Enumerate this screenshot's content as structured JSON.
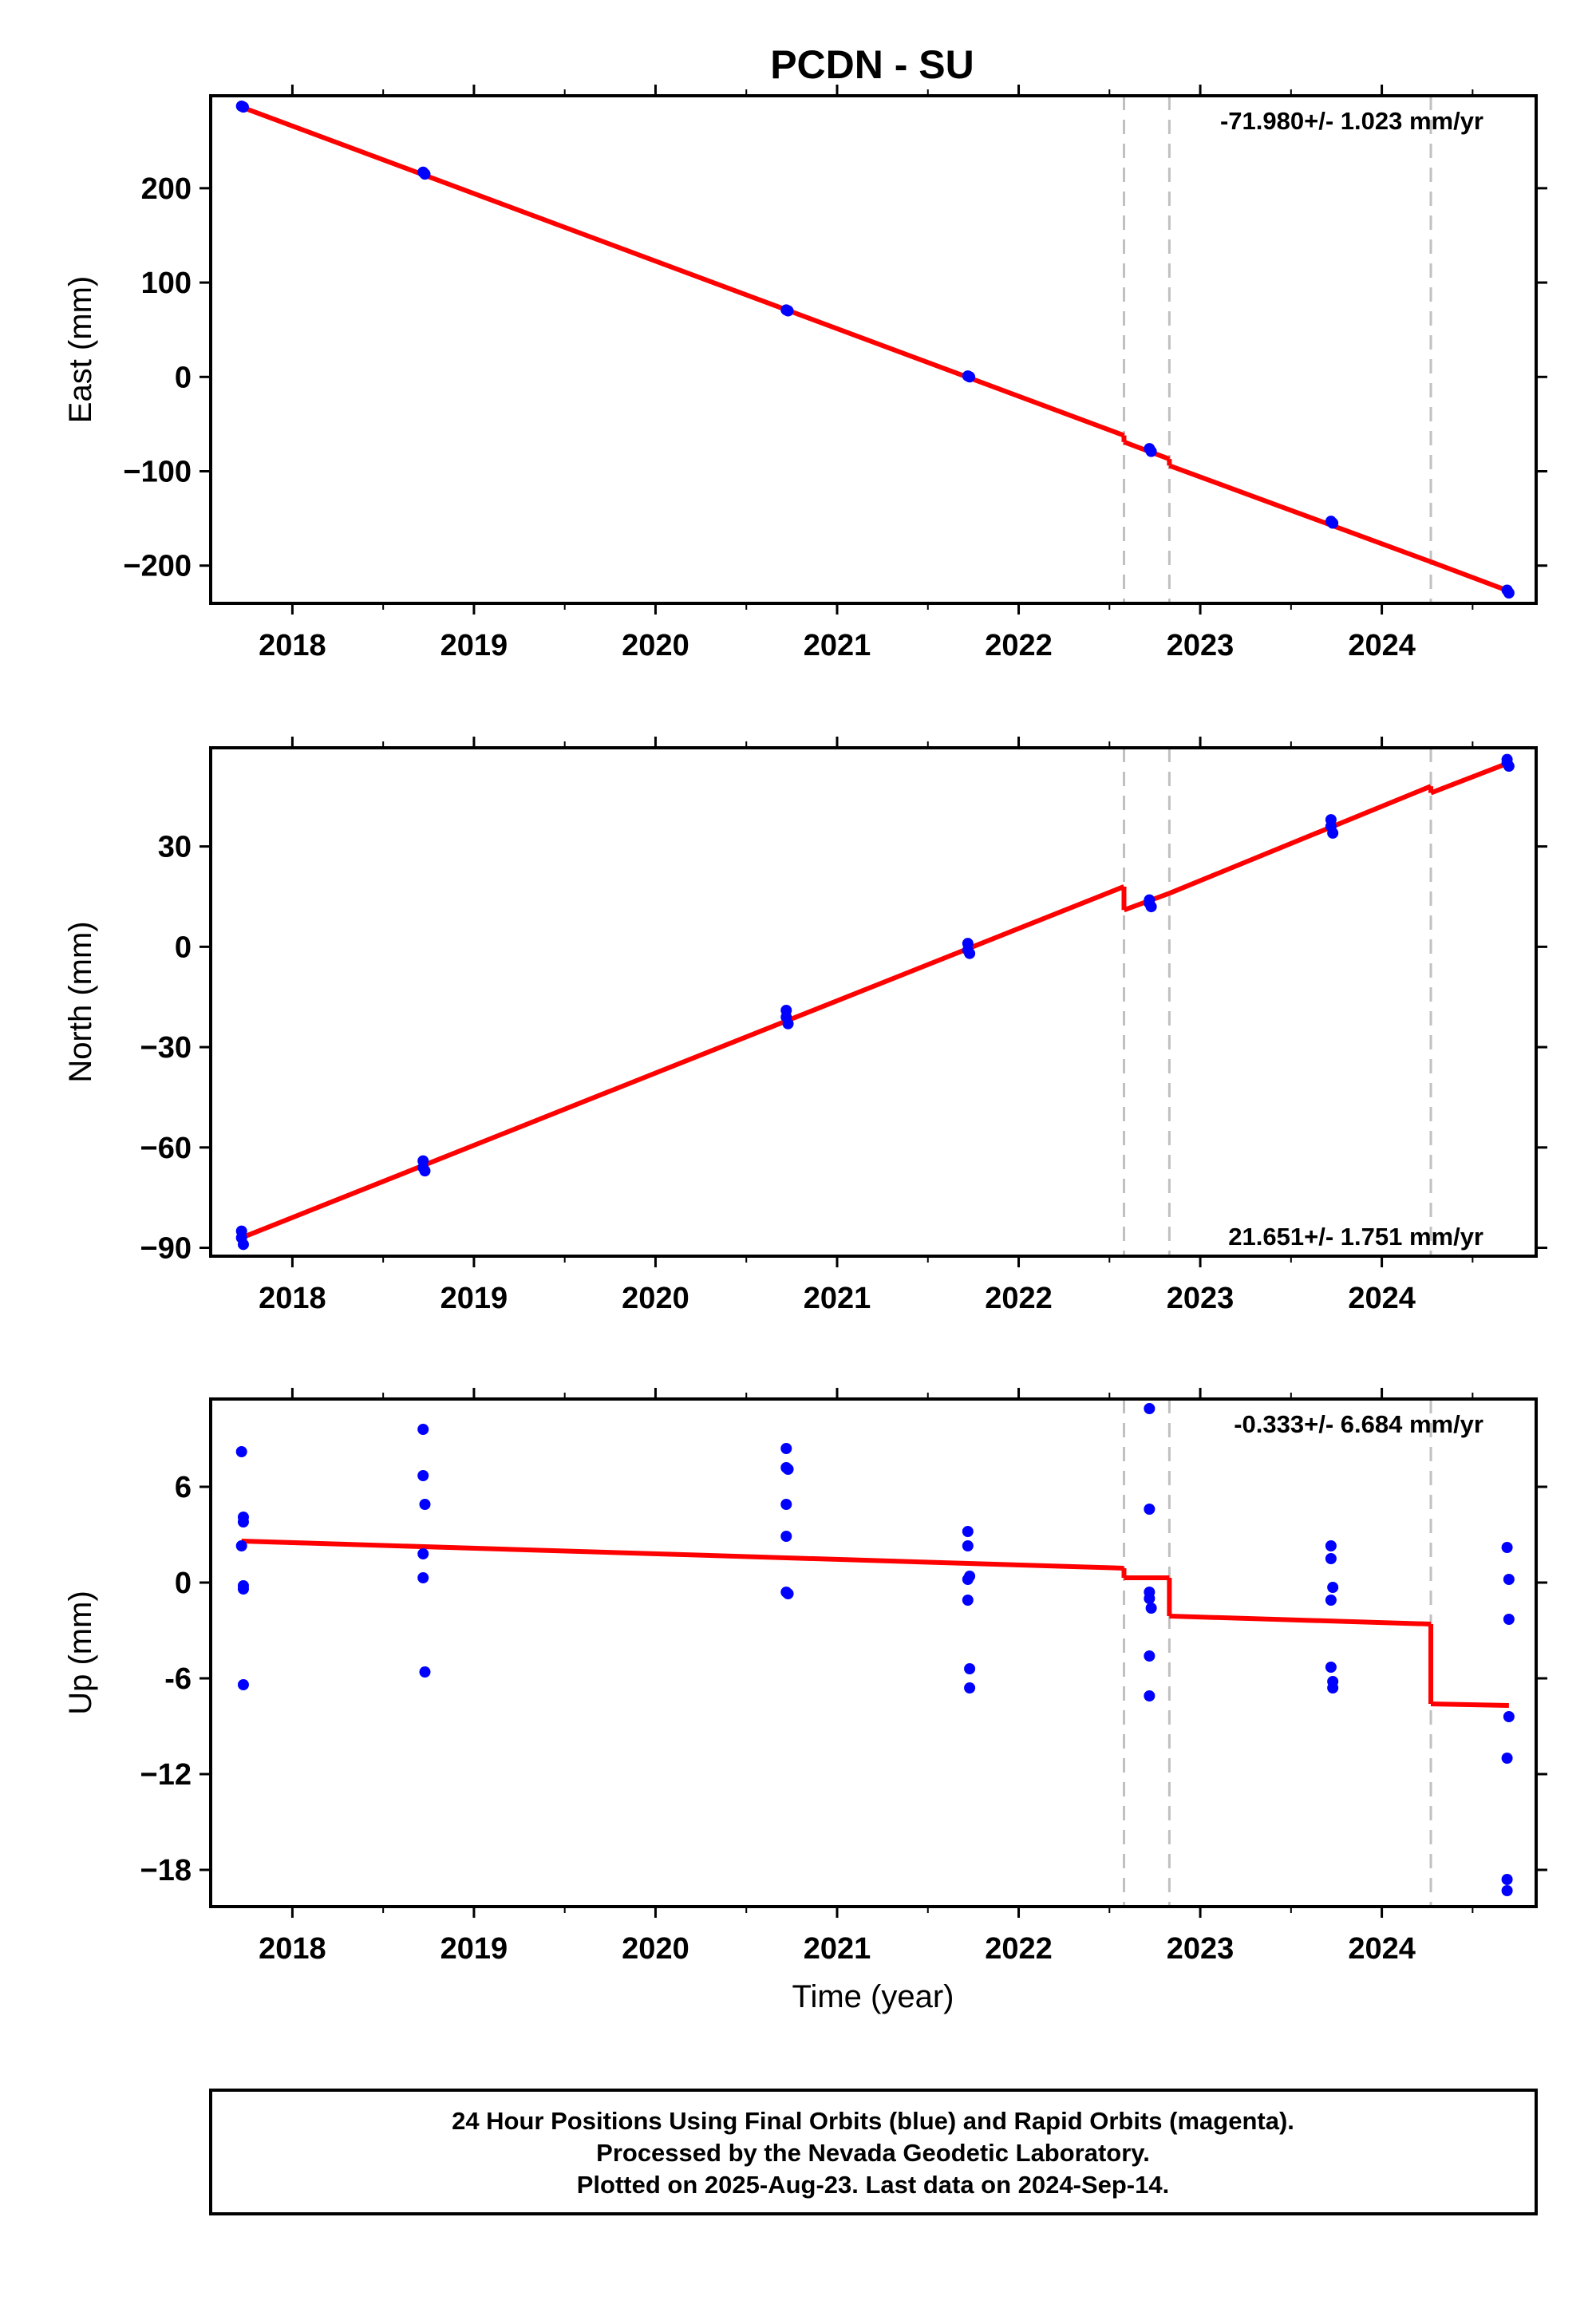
{
  "title": "PCDN - SU",
  "xlabel": "Time (year)",
  "x_ticks": [
    2018,
    2019,
    2020,
    2021,
    2022,
    2023,
    2024
  ],
  "xlim": [
    2017.55,
    2024.85
  ],
  "steps": [
    2022.58,
    2022.83,
    2024.27
  ],
  "colors": {
    "data": "#0000ff",
    "model": "#ff0000",
    "steps": "#c0c0c0",
    "frame": "#000000"
  },
  "caption": {
    "lines": [
      "24 Hour Positions Using Final Orbits (blue) and Rapid Orbits (magenta).",
      "Processed by the Nevada Geodetic Laboratory.",
      "Plotted on 2025-Aug-23. Last data on 2024-Sep-14."
    ]
  },
  "chart_data": [
    {
      "type": "scatter",
      "name": "east",
      "ylabel": "East (mm)",
      "rate_label": "-71.980+/- 1.023 mm/yr",
      "rate_position": "top-right",
      "ylim": [
        -240,
        298
      ],
      "y_ticks": [
        200,
        100,
        0,
        -100,
        -200
      ],
      "y_tick_labels": [
        "200",
        "100",
        "0",
        "−100",
        "−200"
      ],
      "points": [
        [
          2017.72,
          287
        ],
        [
          2017.73,
          286
        ],
        [
          2018.72,
          217
        ],
        [
          2018.73,
          215
        ],
        [
          2020.72,
          71
        ],
        [
          2020.73,
          70
        ],
        [
          2021.72,
          1
        ],
        [
          2021.73,
          0
        ],
        [
          2022.72,
          -76
        ],
        [
          2022.73,
          -79
        ],
        [
          2023.72,
          -153
        ],
        [
          2023.73,
          -155
        ],
        [
          2024.69,
          -226
        ],
        [
          2024.7,
          -229
        ]
      ],
      "model": [
        [
          [
            2017.72,
            286
          ],
          [
            2022.58,
            -62
          ]
        ],
        [
          [
            2022.58,
            -69
          ],
          [
            2022.83,
            -87
          ]
        ],
        [
          [
            2022.83,
            -94
          ],
          [
            2024.27,
            -196
          ]
        ],
        [
          [
            2024.27,
            -196
          ],
          [
            2024.7,
            -227
          ]
        ]
      ]
    },
    {
      "type": "scatter",
      "name": "north",
      "ylabel": "North (mm)",
      "rate_label": "21.651+/- 1.751 mm/yr",
      "rate_position": "bottom-right",
      "ylim": [
        -92.5,
        59.5
      ],
      "y_ticks": [
        30,
        0,
        -30,
        -60,
        -90
      ],
      "y_tick_labels": [
        "30",
        "0",
        "−30",
        "−60",
        "−90"
      ],
      "points": [
        [
          2017.72,
          -85
        ],
        [
          2017.72,
          -87
        ],
        [
          2017.73,
          -89
        ],
        [
          2018.72,
          -64
        ],
        [
          2018.72,
          -66
        ],
        [
          2018.73,
          -67
        ],
        [
          2020.72,
          -19
        ],
        [
          2020.72,
          -21
        ],
        [
          2020.73,
          -23
        ],
        [
          2021.72,
          1
        ],
        [
          2021.72,
          -1
        ],
        [
          2021.73,
          -2
        ],
        [
          2022.72,
          14
        ],
        [
          2022.72,
          13
        ],
        [
          2022.73,
          12
        ],
        [
          2023.72,
          38
        ],
        [
          2023.72,
          36
        ],
        [
          2023.73,
          34
        ],
        [
          2024.69,
          56
        ],
        [
          2024.69,
          55
        ],
        [
          2024.7,
          54
        ]
      ],
      "model": [
        [
          [
            2017.72,
            -87
          ],
          [
            2022.58,
            18
          ]
        ],
        [
          [
            2022.58,
            11
          ],
          [
            2022.83,
            16
          ]
        ],
        [
          [
            2022.83,
            16
          ],
          [
            2024.27,
            48
          ]
        ],
        [
          [
            2024.27,
            46
          ],
          [
            2024.7,
            55
          ]
        ]
      ]
    },
    {
      "type": "scatter",
      "name": "up",
      "ylabel": "Up (mm)",
      "rate_label": "-0.333+/- 6.684 mm/yr",
      "rate_position": "top-right",
      "ylim": [
        -20.3,
        11.5
      ],
      "y_ticks": [
        6,
        0,
        -6,
        -12,
        -18
      ],
      "y_tick_labels": [
        "6",
        "0",
        "-6",
        "−12",
        "−18"
      ],
      "points": [
        [
          2017.72,
          8.2
        ],
        [
          2017.73,
          4.1
        ],
        [
          2017.73,
          3.8
        ],
        [
          2017.72,
          2.3
        ],
        [
          2017.73,
          -0.2
        ],
        [
          2017.73,
          -0.4
        ],
        [
          2017.73,
          -6.4
        ],
        [
          2018.72,
          9.6
        ],
        [
          2018.72,
          6.7
        ],
        [
          2018.73,
          4.9
        ],
        [
          2018.72,
          1.8
        ],
        [
          2018.72,
          0.3
        ],
        [
          2018.73,
          -5.6
        ],
        [
          2020.72,
          8.4
        ],
        [
          2020.72,
          7.2
        ],
        [
          2020.73,
          7.1
        ],
        [
          2020.72,
          4.9
        ],
        [
          2020.72,
          2.9
        ],
        [
          2020.72,
          -0.6
        ],
        [
          2020.73,
          -0.7
        ],
        [
          2021.72,
          3.2
        ],
        [
          2021.72,
          2.3
        ],
        [
          2021.73,
          0.4
        ],
        [
          2021.72,
          0.2
        ],
        [
          2021.72,
          -1.1
        ],
        [
          2021.73,
          -5.4
        ],
        [
          2021.73,
          -6.6
        ],
        [
          2022.72,
          10.9
        ],
        [
          2022.72,
          4.6
        ],
        [
          2022.72,
          -0.6
        ],
        [
          2022.72,
          -1.0
        ],
        [
          2022.73,
          -1.6
        ],
        [
          2022.72,
          -4.6
        ],
        [
          2022.72,
          -7.1
        ],
        [
          2023.72,
          2.3
        ],
        [
          2023.72,
          1.5
        ],
        [
          2023.73,
          -0.3
        ],
        [
          2023.72,
          -1.1
        ],
        [
          2023.72,
          -5.3
        ],
        [
          2023.73,
          -6.2
        ],
        [
          2023.73,
          -6.6
        ],
        [
          2024.69,
          2.2
        ],
        [
          2024.7,
          0.2
        ],
        [
          2024.7,
          -2.3
        ],
        [
          2024.7,
          -8.4
        ],
        [
          2024.69,
          -11.0
        ],
        [
          2024.69,
          -18.6
        ],
        [
          2024.69,
          -19.3
        ]
      ],
      "model": [
        [
          [
            2017.72,
            2.6
          ],
          [
            2022.58,
            0.9
          ]
        ],
        [
          [
            2022.58,
            0.3
          ],
          [
            2022.83,
            0.3
          ]
        ],
        [
          [
            2022.83,
            -2.1
          ],
          [
            2024.27,
            -2.6
          ]
        ],
        [
          [
            2024.27,
            -7.6
          ],
          [
            2024.7,
            -7.7
          ]
        ]
      ]
    }
  ]
}
